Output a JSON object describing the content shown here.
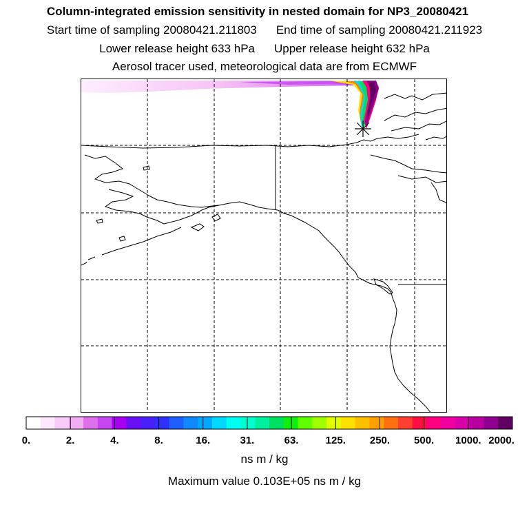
{
  "header": {
    "title": "Column-integrated emission sensitivity in nested domain for NP3_20080421",
    "start_label": "Start time of sampling 20080421.211803",
    "end_label": "End time of sampling 20080421.211923",
    "lower_label": "Lower release height  633 hPa",
    "upper_label": "Upper release height  632 hPa",
    "tracer_label": "Aerosol tracer used, meteorological data are from ECMWF"
  },
  "legend": {
    "tick_labels": [
      "0.",
      "2.",
      "4.",
      "8.",
      "16.",
      "31.",
      "63.",
      "125.",
      "250.",
      "500.",
      "1000.",
      "2000."
    ],
    "units": "ns m / kg",
    "max_value_label": "Maximum value  0.103E+05 ns m / kg",
    "colors": [
      "#ffffff",
      "#fde8fd",
      "#f8ccf8",
      "#f2aef2",
      "#de70ec",
      "#c646f0",
      "#a800f0",
      "#6a10f4",
      "#4a20f8",
      "#2e30fc",
      "#1e60ff",
      "#1088ff",
      "#00a8ff",
      "#00d8ff",
      "#00fff0",
      "#00ffd0",
      "#00f0a0",
      "#00e060",
      "#10f010",
      "#60ff00",
      "#a0ff00",
      "#e0ff00",
      "#ffe000",
      "#ffc000",
      "#ffa000",
      "#ff7010",
      "#ff4030",
      "#ff1040",
      "#ff0080",
      "#f000a0",
      "#d800a8",
      "#b800a0",
      "#900090",
      "#600060"
    ]
  },
  "map": {
    "release_marker": "release-star",
    "plume_colors": [
      "#ffe000",
      "#ff8000",
      "#00d8ff",
      "#00e060",
      "#ff0080",
      "#900090",
      "#600060"
    ]
  }
}
